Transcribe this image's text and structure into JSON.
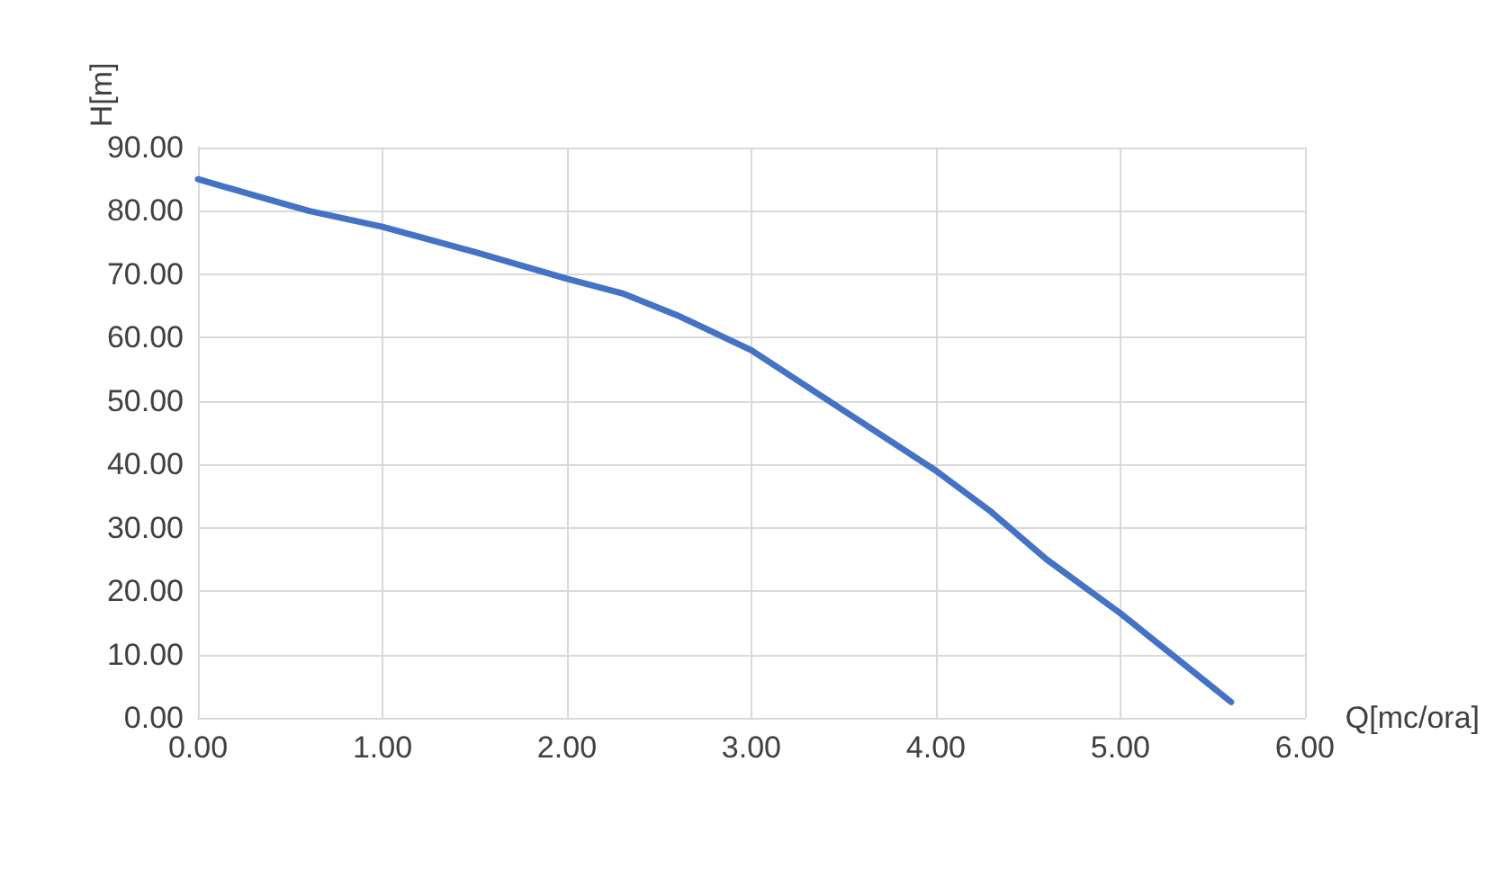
{
  "chart_data": {
    "type": "line",
    "xlabel": "Q[mc/ora]",
    "ylabel": "H[m]",
    "x": [
      0,
      0.3,
      0.6,
      1.0,
      1.5,
      2.0,
      2.3,
      2.6,
      3.0,
      3.5,
      4.0,
      4.3,
      4.6,
      5.0,
      5.3,
      5.6
    ],
    "series": [
      {
        "color": "#4472c4",
        "values": [
          85,
          82.5,
          80,
          77.5,
          73.5,
          69.3,
          67,
          63.5,
          58,
          48.5,
          39,
          32.5,
          25,
          16.5,
          9.5,
          2.5
        ]
      }
    ],
    "xlim": [
      0,
      6
    ],
    "xticks": [
      {
        "value": 0,
        "label": "0.00"
      },
      {
        "value": 1,
        "label": "1.00"
      },
      {
        "value": 2,
        "label": "2.00"
      },
      {
        "value": 3,
        "label": "3.00"
      },
      {
        "value": 4,
        "label": "4.00"
      },
      {
        "value": 5,
        "label": "5.00"
      },
      {
        "value": 6,
        "label": "6.00"
      }
    ],
    "ylim": [
      0,
      90
    ],
    "yticks": [
      {
        "value": 0,
        "label": "0.00"
      },
      {
        "value": 10,
        "label": "10.00"
      },
      {
        "value": 20,
        "label": "20.00"
      },
      {
        "value": 30,
        "label": "30.00"
      },
      {
        "value": 40,
        "label": "40.00"
      },
      {
        "value": 50,
        "label": "50.00"
      },
      {
        "value": 60,
        "label": "60.00"
      },
      {
        "value": 70,
        "label": "70.00"
      },
      {
        "value": 80,
        "label": "80.00"
      },
      {
        "value": 90,
        "label": "90.00"
      }
    ],
    "grid": true,
    "marker": "none",
    "line_style": "solid"
  }
}
